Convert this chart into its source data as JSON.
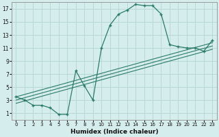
{
  "xlabel": "Humidex (Indice chaleur)",
  "background_color": "#d5eeed",
  "grid_color": "#b8d8d4",
  "line_color": "#2a7a68",
  "xlim": [
    -0.5,
    23.5
  ],
  "ylim": [
    0,
    18
  ],
  "xticks": [
    0,
    1,
    2,
    3,
    4,
    5,
    6,
    7,
    8,
    9,
    10,
    11,
    12,
    13,
    14,
    15,
    16,
    17,
    18,
    19,
    20,
    21,
    22,
    23
  ],
  "yticks": [
    1,
    3,
    5,
    7,
    9,
    11,
    13,
    15,
    17
  ],
  "curve1_x": [
    0,
    1,
    2,
    3,
    4,
    5,
    6,
    7,
    8,
    9,
    10,
    11,
    12,
    13,
    14,
    15,
    16,
    17,
    18,
    19,
    20,
    21,
    22,
    23
  ],
  "curve1_y": [
    3.5,
    3.0,
    2.2,
    2.2,
    1.8,
    0.8,
    0.8,
    7.5,
    5.2,
    3.0,
    11.0,
    14.5,
    16.2,
    16.8,
    17.7,
    17.5,
    17.5,
    16.2,
    11.5,
    11.2,
    11.0,
    11.0,
    10.5,
    12.2
  ],
  "line2_x": [
    0,
    23
  ],
  "line2_y": [
    3.5,
    11.8
  ],
  "line3_x": [
    0,
    23
  ],
  "line3_y": [
    3.0,
    11.3
  ],
  "line4_x": [
    0,
    23
  ],
  "line4_y": [
    2.5,
    10.8
  ]
}
